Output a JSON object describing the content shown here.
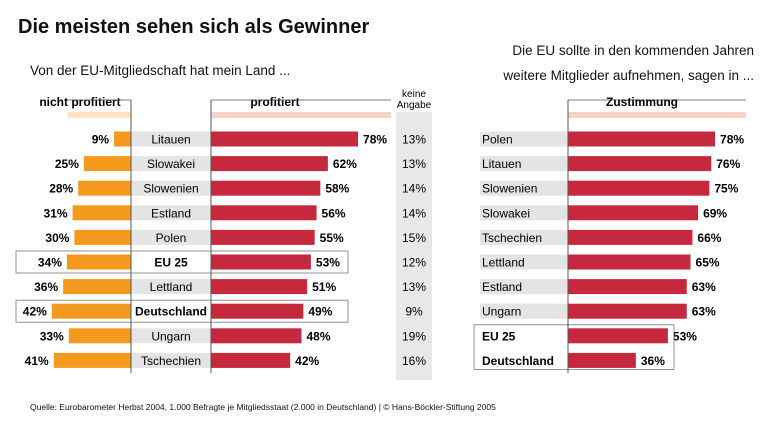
{
  "title": "Die meisten sehen sich als Gewinner",
  "colors": {
    "orange": "#f39a1e",
    "red": "#c6283d",
    "label_bg": "#e4e4e5",
    "header_orange": "#fde3bf",
    "header_red": "#f8d2c8",
    "na_bg": "#e8e8e9"
  },
  "footer": "Quelle: Eurobarometer Herbst 2004, 1.000 Befragte je Mitgliedsstaat (2.000 in Deutschland) | © Hans-Böckler-Stiftung 2005",
  "chart_data": [
    {
      "type": "bar",
      "subtitle": "Von der EU-Mitgliedschaft hat mein Land ...",
      "headers": {
        "neg": "nicht profitiert",
        "pos": "profitiert",
        "na": "keine Angabe"
      },
      "categories": [
        "Litauen",
        "Slowakei",
        "Slowenien",
        "Estland",
        "Polen",
        "EU 25",
        "Lettland",
        "Deutschland",
        "Ungarn",
        "Tschechien"
      ],
      "highlighted": [
        "EU 25",
        "Deutschland"
      ],
      "series": [
        {
          "name": "nicht profitiert",
          "values": [
            9,
            25,
            28,
            31,
            30,
            34,
            36,
            42,
            33,
            41
          ]
        },
        {
          "name": "profitiert",
          "values": [
            78,
            62,
            58,
            56,
            55,
            53,
            51,
            49,
            48,
            42
          ]
        },
        {
          "name": "keine Angabe",
          "values": [
            13,
            13,
            14,
            14,
            15,
            12,
            13,
            9,
            19,
            16
          ]
        }
      ],
      "unit": "%"
    },
    {
      "type": "bar",
      "subtitle": "Die EU sollte in den kommenden Jahren\nweitere Mitglieder aufnehmen, sagen in ...",
      "header": "Zustimmung",
      "categories": [
        "Polen",
        "Litauen",
        "Slowenien",
        "Slowakei",
        "Tschechien",
        "Lettland",
        "Estland",
        "Ungarn",
        "EU 25",
        "Deutschland"
      ],
      "highlighted": [
        "EU 25",
        "Deutschland"
      ],
      "series": [
        {
          "name": "Zustimmung",
          "values": [
            78,
            76,
            75,
            69,
            66,
            65,
            63,
            63,
            53,
            36
          ]
        }
      ],
      "unit": "%"
    }
  ]
}
